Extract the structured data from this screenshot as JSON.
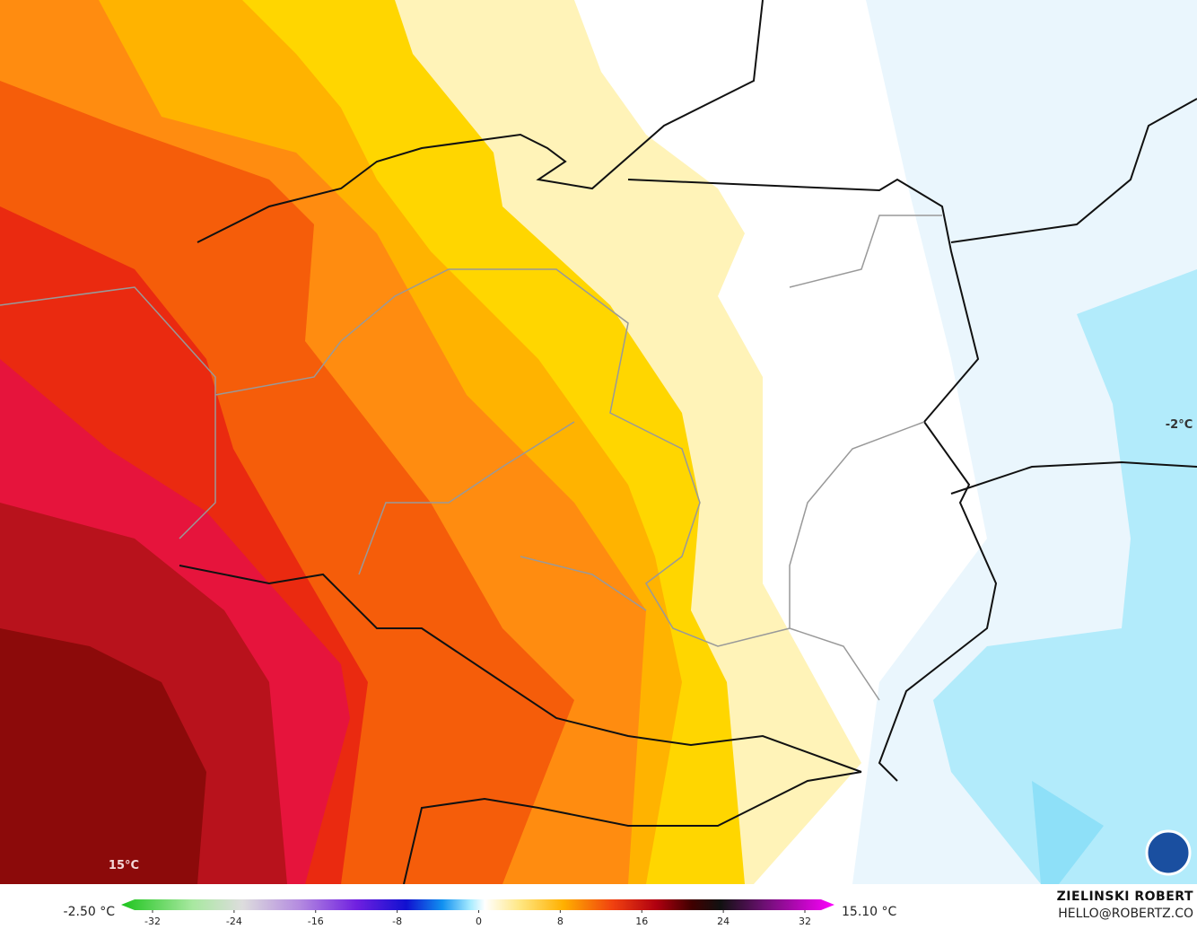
{
  "map": {
    "labels": [
      {
        "text": "15°C"
      },
      {
        "text": "-2°C"
      }
    ]
  },
  "legend": {
    "min_label": "-2.50 °C",
    "max_label": "15.10 °C",
    "ticks": [
      -32,
      -24,
      -16,
      -8,
      0,
      8,
      16,
      24,
      32
    ]
  },
  "credit": {
    "author": "ZIELINSKI ROBERT",
    "email": "HELLO@ROBERTZ.CO"
  }
}
